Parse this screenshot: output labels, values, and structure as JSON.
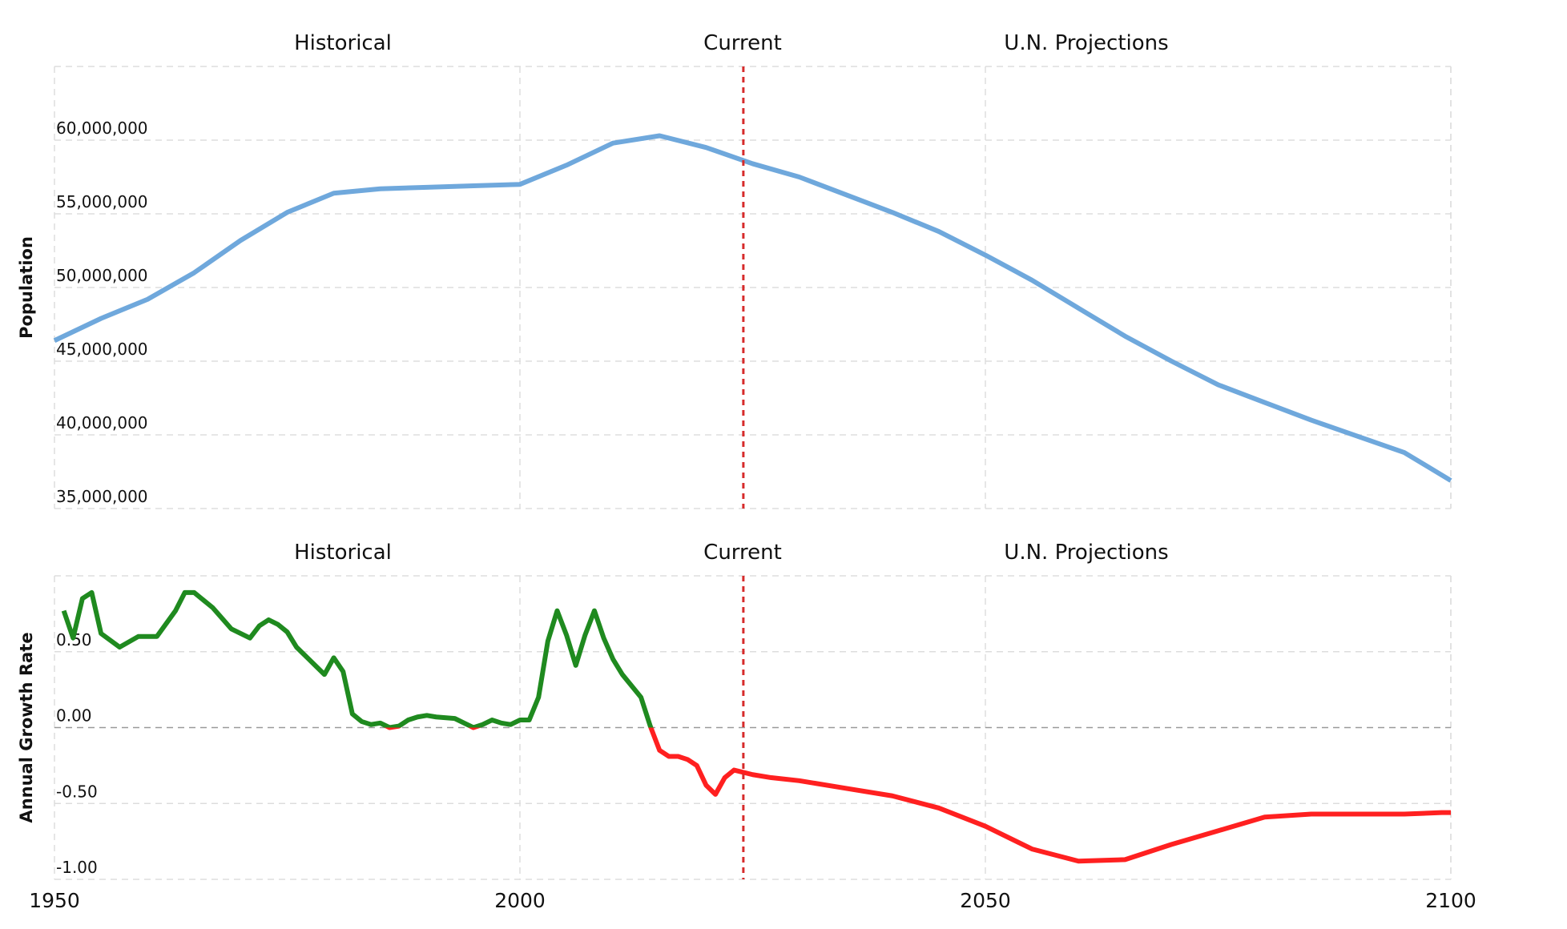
{
  "chart_data": [
    {
      "type": "line",
      "y_label": "Population",
      "annotations": [
        "Historical",
        "Current",
        "U.N. Projections"
      ],
      "marker_x": 2024,
      "marker_color": "#d62b2b",
      "xlim": [
        1950,
        2100
      ],
      "xticks": [
        1950,
        2000,
        2050,
        2100
      ],
      "ylim": [
        35000000,
        65000000
      ],
      "yticks": [
        {
          "value": 35000000,
          "label": "35,000,000"
        },
        {
          "value": 40000000,
          "label": "40,000,000"
        },
        {
          "value": 45000000,
          "label": "45,000,000"
        },
        {
          "value": 50000000,
          "label": "50,000,000"
        },
        {
          "value": 55000000,
          "label": "55,000,000"
        },
        {
          "value": 60000000,
          "label": "60,000,000"
        }
      ],
      "grid": true,
      "color": "#6fa8dc",
      "x": [
        1950,
        1955,
        1960,
        1965,
        1970,
        1975,
        1980,
        1985,
        1990,
        1995,
        2000,
        2005,
        2010,
        2015,
        2020,
        2025,
        2030,
        2035,
        2040,
        2045,
        2050,
        2055,
        2060,
        2065,
        2070,
        2075,
        2080,
        2085,
        2090,
        2095,
        2100
      ],
      "values": [
        46400000,
        47900000,
        49200000,
        51000000,
        53200000,
        55100000,
        56400000,
        56700000,
        56800000,
        56900000,
        57000000,
        58300000,
        59800000,
        60300000,
        59500000,
        58400000,
        57500000,
        56300000,
        55100000,
        53800000,
        52200000,
        50500000,
        48600000,
        46700000,
        45000000,
        43400000,
        42200000,
        41000000,
        39900000,
        38800000,
        36900000
      ]
    },
    {
      "type": "line",
      "y_label": "Annual Growth Rate",
      "annotations": [
        "Historical",
        "Current",
        "U.N. Projections"
      ],
      "marker_x": 2024,
      "marker_color": "#d62b2b",
      "xlim": [
        1950,
        2100
      ],
      "xticks": [
        1950,
        2000,
        2050,
        2100
      ],
      "ylim": [
        -1,
        1
      ],
      "yticks": [
        {
          "value": -1,
          "label": "-1.00"
        },
        {
          "value": -0.5,
          "label": "-0.50"
        },
        {
          "value": 0,
          "label": "0.00"
        },
        {
          "value": 0.5,
          "label": "0.50"
        }
      ],
      "grid": true,
      "zero_line": true,
      "positive_color": "#1f8a1f",
      "negative_color": "#ff2020",
      "x": [
        1951,
        1952,
        1953,
        1954,
        1955,
        1957,
        1959,
        1961,
        1963,
        1964,
        1965,
        1967,
        1969,
        1971,
        1972,
        1973,
        1974,
        1975,
        1976,
        1978,
        1979,
        1980,
        1981,
        1982,
        1983,
        1984,
        1985,
        1986,
        1987,
        1988,
        1989,
        1990,
        1991,
        1993,
        1994,
        1995,
        1996,
        1997,
        1998,
        1999,
        2000,
        2001,
        2002,
        2003,
        2004,
        2005,
        2006,
        2007,
        2008,
        2009,
        2010,
        2011,
        2013,
        2014,
        2015,
        2016,
        2017,
        2018,
        2019,
        2020,
        2021,
        2022,
        2023,
        2025,
        2027,
        2030,
        2035,
        2040,
        2045,
        2050,
        2055,
        2060,
        2065,
        2070,
        2075,
        2080,
        2085,
        2090,
        2095,
        2099,
        2100
      ],
      "values": [
        0.77,
        0.59,
        0.85,
        0.89,
        0.62,
        0.53,
        0.6,
        0.6,
        0.77,
        0.89,
        0.89,
        0.79,
        0.65,
        0.59,
        0.67,
        0.71,
        0.68,
        0.63,
        0.53,
        0.41,
        0.35,
        0.46,
        0.37,
        0.09,
        0.04,
        0.02,
        0.03,
        0,
        0.01,
        0.05,
        0.07,
        0.08,
        0.07,
        0.06,
        0.03,
        0,
        0.02,
        0.05,
        0.03,
        0.02,
        0.05,
        0.05,
        0.2,
        0.57,
        0.77,
        0.61,
        0.41,
        0.61,
        0.77,
        0.59,
        0.45,
        0.35,
        0.2,
        0.01,
        -0.15,
        -0.19,
        -0.19,
        -0.21,
        -0.25,
        -0.38,
        -0.44,
        -0.33,
        -0.28,
        -0.31,
        -0.33,
        -0.35,
        -0.4,
        -0.45,
        -0.53,
        -0.65,
        -0.8,
        -0.88,
        -0.87,
        -0.77,
        -0.68,
        -0.59,
        -0.57,
        -0.57,
        -0.57,
        -0.56,
        -0.56
      ]
    }
  ]
}
